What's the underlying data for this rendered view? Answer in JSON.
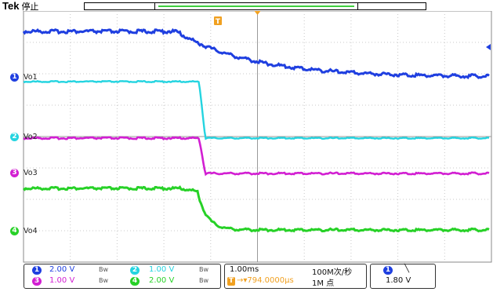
{
  "header": {
    "brand": "Tek",
    "status": "停止"
  },
  "trigger_marker": "T",
  "channels": [
    {
      "num": "1",
      "label": "Vo1",
      "color": "#1f3fe0",
      "scale": "2.00 V"
    },
    {
      "num": "2",
      "label": "Vo2",
      "color": "#24d4e0",
      "scale": "1.00 V"
    },
    {
      "num": "3",
      "label": "Vo3",
      "color": "#d21fd2",
      "scale": "1.00 V"
    },
    {
      "num": "4",
      "label": "Vo4",
      "color": "#27d127",
      "scale": "2.00 V"
    }
  ],
  "bandwidth_symbol": "Bw",
  "timebase": {
    "scale": "1.00ms",
    "sample_rate": "100M次/秒",
    "record_length": "1M 点",
    "trigger_position": "794.0000μs",
    "trigger_source": "1",
    "trigger_slope": "╲",
    "trigger_level": "1.80 V"
  },
  "colors": {
    "trigger": "#f0a020",
    "grid": "#c8c8c8"
  }
}
